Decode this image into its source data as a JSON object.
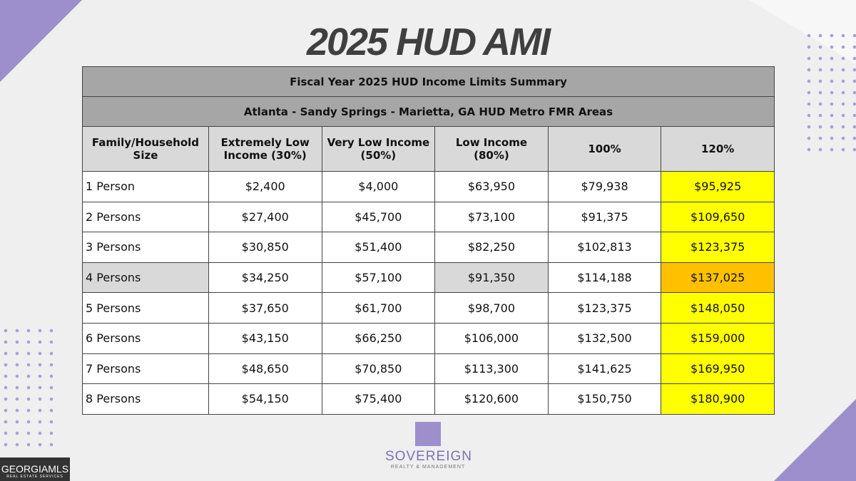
{
  "title": "2025 HUD AMI",
  "table": {
    "caption": "Fiscal Year 2025 HUD Income Limits Summary",
    "subcaption": "Atlanta - Sandy Springs - Marietta, GA HUD Metro FMR Areas",
    "headers": [
      "Family/Household Size",
      "Extremely Low Income (30%)",
      "Very Low Income (50%)",
      "Low Income (80%)",
      "100%",
      "120%"
    ],
    "rows": [
      [
        "1 Person",
        "$2,400",
        "$4,000",
        "$63,950",
        "$79,938",
        "$95,925"
      ],
      [
        "2 Persons",
        "$27,400",
        "$45,700",
        "$73,100",
        "$91,375",
        "$109,650"
      ],
      [
        "3 Persons",
        "$30,850",
        "$51,400",
        "$82,250",
        "$102,813",
        "$123,375"
      ],
      [
        "4 Persons",
        "$34,250",
        "$57,100",
        "$91,350",
        "$114,188",
        "$137,025"
      ],
      [
        "5 Persons",
        "$37,650",
        "$61,700",
        "$98,700",
        "$123,375",
        "$148,050"
      ],
      [
        "6 Persons",
        "$43,150",
        "$66,250",
        "$106,000",
        "$132,500",
        "$159,000"
      ],
      [
        "7 Persons",
        "$48,650",
        "$70,850",
        "$113,300",
        "$141,625",
        "$169,950"
      ],
      [
        "8 Persons",
        "$54,150",
        "$75,400",
        "$120,600",
        "$150,750",
        "$180,900"
      ]
    ]
  },
  "logo": {
    "name": "SOVEREIGN",
    "tagline": "REALTY & MANAGEMENT"
  },
  "badge": {
    "name": "GEORGIAMLS",
    "tagline": "REAL ESTATE SERVICES"
  }
}
